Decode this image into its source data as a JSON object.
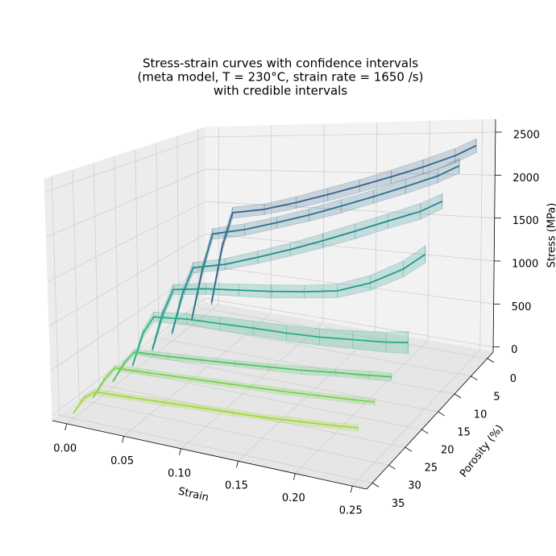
{
  "chart_data": {
    "type": "line3d",
    "title": [
      "Stress-strain curves with confidence intervals",
      "(meta model, T = 230°C, strain rate = 1650 /s)",
      "with credible intervals"
    ],
    "xlabel": "Strain",
    "ylabel": "Porosity (%)",
    "zlabel": "Stress (MPa)",
    "xlim": [
      -0.0125,
      0.2625
    ],
    "ylim": [
      -1.75,
      36.75
    ],
    "zlim": [
      -60,
      2650
    ],
    "xticks": [
      {
        "value": 0,
        "label": "0.00"
      },
      0.05,
      {
        "value": 0.1,
        "label": "0.10"
      },
      0.15,
      {
        "value": 0.2,
        "label": "0.20"
      },
      0.25
    ],
    "yticks": [
      0,
      5,
      10,
      15,
      20,
      25,
      30,
      35
    ],
    "zticks": [
      0,
      500,
      1000,
      1500,
      2000,
      2500
    ],
    "grid": true,
    "x": [
      0,
      0.01,
      0.02,
      0.05,
      0.08,
      0.11,
      0.14,
      0.17,
      0.2,
      0.23,
      0.25
    ],
    "series": [
      {
        "porosity": 0,
        "color": "#33638d",
        "values": [
          50,
          900,
          1420,
          1500,
          1620,
          1750,
          1880,
          2010,
          2140,
          2280,
          2400
        ],
        "errors": [
          40,
          70,
          80,
          75,
          80,
          85,
          80,
          85,
          90,
          85,
          80
        ]
      },
      {
        "porosity": 5,
        "color": "#2d708e",
        "values": [
          30,
          750,
          1280,
          1380,
          1510,
          1640,
          1780,
          1920,
          2060,
          2200,
          2325
        ],
        "errors": [
          40,
          70,
          75,
          80,
          75,
          80,
          85,
          80,
          85,
          80,
          85
        ]
      },
      {
        "porosity": 10,
        "color": "#238a8d",
        "values": [
          50,
          600,
          980,
          1080,
          1220,
          1360,
          1510,
          1660,
          1810,
          1950,
          2080
        ],
        "errors": [
          30,
          60,
          70,
          75,
          80,
          80,
          85,
          90,
          85,
          90,
          85
        ]
      },
      {
        "porosity": 15,
        "color": "#1f998a",
        "values": [
          30,
          520,
          860,
          930,
          970,
          1010,
          1060,
          1120,
          1260,
          1460,
          1650
        ],
        "errors": [
          30,
          60,
          65,
          70,
          75,
          80,
          75,
          80,
          85,
          90,
          95
        ]
      },
      {
        "porosity": 20,
        "color": "#29af7f",
        "values": [
          20,
          450,
          680,
          720,
          730,
          740,
          745,
          760,
          790,
          820,
          855
        ],
        "errors": [
          20,
          50,
          60,
          70,
          80,
          85,
          90,
          95,
          100,
          110,
          120
        ]
      },
      {
        "porosity": 25,
        "color": "#52c569",
        "values": [
          10,
          250,
          420,
          440,
          470,
          500,
          530,
          560,
          600,
          635,
          660
        ],
        "errors": [
          10,
          30,
          35,
          40,
          40,
          35,
          40,
          45,
          40,
          45,
          40
        ]
      },
      {
        "porosity": 30,
        "color": "#7ad151",
        "values": [
          0,
          230,
          400,
          420,
          440,
          460,
          480,
          500,
          525,
          550,
          570
        ],
        "errors": [
          10,
          30,
          30,
          35,
          30,
          35,
          30,
          35,
          30,
          35,
          30
        ]
      },
      {
        "porosity": 35,
        "color": "#a0da39",
        "values": [
          0,
          200,
          290,
          310,
          330,
          350,
          370,
          390,
          420,
          450,
          475
        ],
        "errors": [
          10,
          30,
          35,
          30,
          35,
          30,
          35,
          30,
          35,
          30,
          35
        ]
      }
    ]
  }
}
